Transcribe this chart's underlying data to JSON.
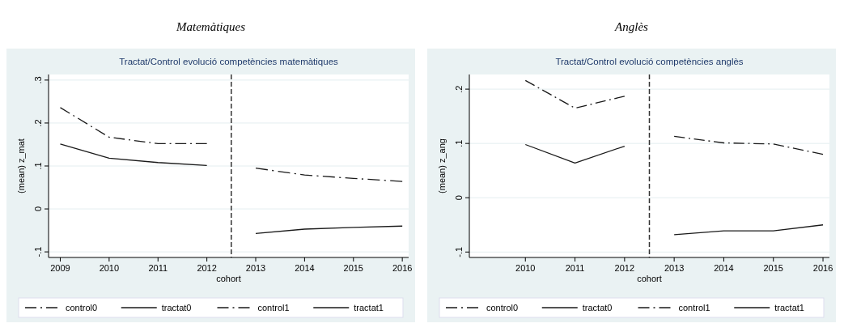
{
  "chart_data": [
    {
      "type": "line",
      "title": "Matemàtiques",
      "subtitle": "Tractat/Control evolució competències matemàtiques",
      "xlabel": "cohort",
      "ylabel": "(mean) z_mat",
      "xlim": [
        2008.76,
        2016.13
      ],
      "xticks": [
        2009,
        2010,
        2011,
        2012,
        2013,
        2014,
        2015,
        2016
      ],
      "ylim": [
        -0.113,
        0.313
      ],
      "yticks": [
        {
          "value": -0.1,
          "label": "-.1"
        },
        0,
        {
          "value": 0.1,
          "label": ".1"
        },
        {
          "value": 0.2,
          "label": ".2"
        },
        {
          "value": 0.3,
          "label": ".3"
        }
      ],
      "grid": "y",
      "legend": "bottom",
      "ref_lines": [
        {
          "axis": "x",
          "value": 2012.5,
          "line_style": "dashed",
          "color": "#333333"
        }
      ],
      "series": [
        {
          "name": "control0",
          "color": "#1a1a1a",
          "line_style": "dashed",
          "x": [
            2009,
            2010,
            2011,
            2012
          ],
          "values": [
            0.236,
            0.167,
            0.152,
            0.152
          ]
        },
        {
          "name": "tractat0",
          "color": "#1a1a1a",
          "line_style": "solid",
          "x": [
            2009,
            2010,
            2011,
            2012
          ],
          "values": [
            0.151,
            0.118,
            0.108,
            0.101
          ]
        },
        {
          "name": "control1",
          "color": "#1a1a1a",
          "line_style": "dashed",
          "x": [
            2013,
            2014,
            2015,
            2016
          ],
          "values": [
            0.095,
            0.079,
            0.071,
            0.064
          ]
        },
        {
          "name": "tractat1",
          "color": "#1a1a1a",
          "line_style": "solid",
          "x": [
            2013,
            2014,
            2015,
            2016
          ],
          "values": [
            -0.057,
            -0.047,
            -0.043,
            -0.04
          ]
        }
      ]
    },
    {
      "type": "line",
      "title": "Anglès",
      "subtitle": "Tractat/Control evolució competències anglès",
      "xlabel": "cohort",
      "ylabel": "(mean) z_ang",
      "xlim": [
        2008.87,
        2016.13
      ],
      "xticks": [
        2010,
        2011,
        2012,
        2013,
        2014,
        2015,
        2016
      ],
      "ylim": [
        -0.11,
        0.227
      ],
      "yticks": [
        {
          "value": -0.1,
          "label": "-.1"
        },
        0,
        {
          "value": 0.1,
          "label": ".1"
        },
        {
          "value": 0.2,
          "label": ".2"
        }
      ],
      "grid": "y",
      "legend": "bottom",
      "ref_lines": [
        {
          "axis": "x",
          "value": 2012.5,
          "line_style": "dashed",
          "color": "#333333"
        }
      ],
      "series": [
        {
          "name": "control0",
          "color": "#1a1a1a",
          "line_style": "dashed",
          "x": [
            2010,
            2011,
            2012
          ],
          "values": [
            0.216,
            0.165,
            0.187
          ]
        },
        {
          "name": "tractat0",
          "color": "#1a1a1a",
          "line_style": "solid",
          "x": [
            2010,
            2011,
            2012
          ],
          "values": [
            0.098,
            0.064,
            0.095
          ]
        },
        {
          "name": "control1",
          "color": "#1a1a1a",
          "line_style": "dashed",
          "x": [
            2013,
            2014,
            2015,
            2016
          ],
          "values": [
            0.113,
            0.101,
            0.099,
            0.08
          ]
        },
        {
          "name": "tractat1",
          "color": "#1a1a1a",
          "line_style": "solid",
          "x": [
            2013,
            2014,
            2015,
            2016
          ],
          "values": [
            -0.068,
            -0.061,
            -0.061,
            -0.05
          ]
        }
      ]
    }
  ]
}
